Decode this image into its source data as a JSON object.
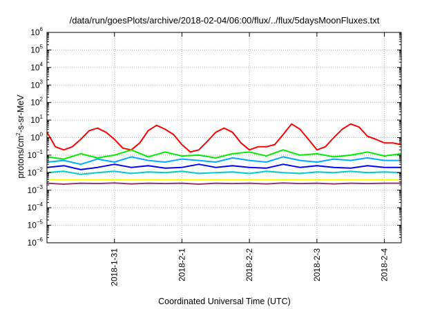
{
  "chart_data": {
    "type": "line",
    "title": "/data/run/goesPlots/archive/2018-02-04/06:00/flux/../flux/5daysMoonFluxes.txt",
    "xlabel": "Coordinated Universal Time (UTC)",
    "ylabel": "protons/cm2-s-sr-MeV",
    "yscale": "log",
    "ylim": [
      1e-06,
      1000000.0
    ],
    "xlim": [
      "2018-01-30T00:00",
      "2018-02-04T06:00"
    ],
    "xticks": [
      "2018-1-31",
      "2018-2-1",
      "2018-2-2",
      "2018-2-3",
      "2018-2-4"
    ],
    "ytick_exponents": [
      -6,
      -5,
      -4,
      -3,
      -2,
      -1,
      0,
      1,
      2,
      3,
      4,
      5,
      6
    ],
    "grid": true,
    "legend": "none",
    "series": [
      {
        "color": "#ff0000",
        "x": [
          "2018-01-30T00:00",
          "2018-01-30T03:00",
          "2018-01-30T06:00",
          "2018-01-30T09:00",
          "2018-01-30T12:00",
          "2018-01-30T15:00",
          "2018-01-30T18:00",
          "2018-01-30T21:00",
          "2018-01-31T00:00",
          "2018-01-31T03:00",
          "2018-01-31T06:00",
          "2018-01-31T09:00",
          "2018-01-31T12:00",
          "2018-01-31T15:00",
          "2018-01-31T18:00",
          "2018-01-31T21:00",
          "2018-02-01T00:00",
          "2018-02-01T03:00",
          "2018-02-01T06:00",
          "2018-02-01T09:00",
          "2018-02-01T12:00",
          "2018-02-01T15:00",
          "2018-02-01T18:00",
          "2018-02-01T21:00",
          "2018-02-02T00:00",
          "2018-02-02T03:00",
          "2018-02-02T06:00",
          "2018-02-02T09:00",
          "2018-02-02T12:00",
          "2018-02-02T15:00",
          "2018-02-02T18:00",
          "2018-02-02T21:00",
          "2018-02-03T00:00",
          "2018-02-03T03:00",
          "2018-02-03T06:00",
          "2018-02-03T09:00",
          "2018-02-03T12:00",
          "2018-02-03T15:00",
          "2018-02-03T18:00",
          "2018-02-03T21:00",
          "2018-02-04T00:00",
          "2018-02-04T03:00",
          "2018-02-04T06:00"
        ],
        "values": [
          2.0,
          0.3,
          0.2,
          0.3,
          0.8,
          2.5,
          3.5,
          2.0,
          0.8,
          0.25,
          0.2,
          0.5,
          2.5,
          5.0,
          3.0,
          1.5,
          0.4,
          0.15,
          0.2,
          0.6,
          2.0,
          3.5,
          2.0,
          0.5,
          0.2,
          0.3,
          0.3,
          0.4,
          1.5,
          6.0,
          3.0,
          0.8,
          0.2,
          0.3,
          1.0,
          3.0,
          6.0,
          4.0,
          1.2,
          0.8,
          0.5,
          0.5,
          0.4
        ]
      },
      {
        "color": "#00ee00",
        "x": [
          "2018-01-30T00:00",
          "2018-01-30T06:00",
          "2018-01-30T12:00",
          "2018-01-30T18:00",
          "2018-01-31T00:00",
          "2018-01-31T06:00",
          "2018-01-31T12:00",
          "2018-01-31T18:00",
          "2018-02-01T00:00",
          "2018-02-01T06:00",
          "2018-02-01T12:00",
          "2018-02-01T18:00",
          "2018-02-02T00:00",
          "2018-02-02T06:00",
          "2018-02-02T12:00",
          "2018-02-02T18:00",
          "2018-02-03T00:00",
          "2018-02-03T06:00",
          "2018-02-03T12:00",
          "2018-02-03T18:00",
          "2018-02-04T00:00",
          "2018-02-04T06:00"
        ],
        "values": [
          0.08,
          0.06,
          0.12,
          0.07,
          0.1,
          0.2,
          0.08,
          0.15,
          0.09,
          0.1,
          0.07,
          0.12,
          0.15,
          0.09,
          0.2,
          0.1,
          0.12,
          0.08,
          0.1,
          0.15,
          0.09,
          0.12
        ]
      },
      {
        "color": "#00aaff",
        "x": [
          "2018-01-30T00:00",
          "2018-01-30T06:00",
          "2018-01-30T12:00",
          "2018-01-30T18:00",
          "2018-01-31T00:00",
          "2018-01-31T06:00",
          "2018-01-31T12:00",
          "2018-01-31T18:00",
          "2018-02-01T00:00",
          "2018-02-01T06:00",
          "2018-02-01T12:00",
          "2018-02-01T18:00",
          "2018-02-02T00:00",
          "2018-02-02T06:00",
          "2018-02-02T12:00",
          "2018-02-02T18:00",
          "2018-02-03T00:00",
          "2018-02-03T06:00",
          "2018-02-03T12:00",
          "2018-02-03T18:00",
          "2018-02-04T00:00",
          "2018-02-04T06:00"
        ],
        "values": [
          0.04,
          0.05,
          0.03,
          0.06,
          0.04,
          0.08,
          0.05,
          0.04,
          0.06,
          0.05,
          0.04,
          0.07,
          0.05,
          0.04,
          0.08,
          0.05,
          0.04,
          0.06,
          0.05,
          0.07,
          0.05,
          0.05
        ]
      },
      {
        "color": "#0000ff",
        "x": [
          "2018-01-30T00:00",
          "2018-01-30T06:00",
          "2018-01-30T12:00",
          "2018-01-30T18:00",
          "2018-01-31T00:00",
          "2018-01-31T06:00",
          "2018-01-31T12:00",
          "2018-01-31T18:00",
          "2018-02-01T00:00",
          "2018-02-01T06:00",
          "2018-02-01T12:00",
          "2018-02-01T18:00",
          "2018-02-02T00:00",
          "2018-02-02T06:00",
          "2018-02-02T12:00",
          "2018-02-02T18:00",
          "2018-02-03T00:00",
          "2018-02-03T06:00",
          "2018-02-03T12:00",
          "2018-02-03T18:00",
          "2018-02-04T00:00",
          "2018-02-04T06:00"
        ],
        "values": [
          0.02,
          0.025,
          0.015,
          0.02,
          0.03,
          0.02,
          0.025,
          0.018,
          0.02,
          0.03,
          0.02,
          0.025,
          0.02,
          0.018,
          0.03,
          0.02,
          0.025,
          0.02,
          0.018,
          0.025,
          0.02,
          0.02
        ]
      },
      {
        "color": "#00cccc",
        "x": [
          "2018-01-30T00:00",
          "2018-01-30T06:00",
          "2018-01-30T12:00",
          "2018-01-30T18:00",
          "2018-01-31T00:00",
          "2018-01-31T06:00",
          "2018-01-31T12:00",
          "2018-01-31T18:00",
          "2018-02-01T00:00",
          "2018-02-01T06:00",
          "2018-02-01T12:00",
          "2018-02-01T18:00",
          "2018-02-02T00:00",
          "2018-02-02T06:00",
          "2018-02-02T12:00",
          "2018-02-02T18:00",
          "2018-02-03T00:00",
          "2018-02-03T06:00",
          "2018-02-03T12:00",
          "2018-02-03T18:00",
          "2018-02-04T00:00",
          "2018-02-04T06:00"
        ],
        "values": [
          0.01,
          0.012,
          0.008,
          0.01,
          0.012,
          0.009,
          0.011,
          0.01,
          0.012,
          0.009,
          0.01,
          0.011,
          0.009,
          0.012,
          0.01,
          0.009,
          0.011,
          0.01,
          0.012,
          0.01,
          0.011,
          0.01
        ]
      },
      {
        "color": "#ffff00",
        "x": [
          "2018-01-30T00:00",
          "2018-01-31T00:00",
          "2018-02-01T00:00",
          "2018-02-02T00:00",
          "2018-02-03T00:00",
          "2018-02-04T00:00",
          "2018-02-04T06:00"
        ],
        "values": [
          0.004,
          0.004,
          0.004,
          0.004,
          0.004,
          0.004,
          0.004
        ]
      },
      {
        "color": "#993366",
        "x": [
          "2018-01-30T00:00",
          "2018-01-30T06:00",
          "2018-01-30T12:00",
          "2018-01-30T18:00",
          "2018-01-31T00:00",
          "2018-01-31T06:00",
          "2018-01-31T12:00",
          "2018-01-31T18:00",
          "2018-02-01T00:00",
          "2018-02-01T06:00",
          "2018-02-01T12:00",
          "2018-02-01T18:00",
          "2018-02-02T00:00",
          "2018-02-02T06:00",
          "2018-02-02T12:00",
          "2018-02-02T18:00",
          "2018-02-03T00:00",
          "2018-02-03T06:00",
          "2018-02-03T12:00",
          "2018-02-03T18:00",
          "2018-02-04T00:00",
          "2018-02-04T06:00"
        ],
        "values": [
          0.0025,
          0.0022,
          0.0025,
          0.0024,
          0.0026,
          0.0023,
          0.0025,
          0.0024,
          0.0025,
          0.0022,
          0.0025,
          0.0024,
          0.0025,
          0.0023,
          0.0026,
          0.0024,
          0.0025,
          0.0023,
          0.0025,
          0.0024,
          0.0025,
          0.0025
        ]
      }
    ]
  }
}
